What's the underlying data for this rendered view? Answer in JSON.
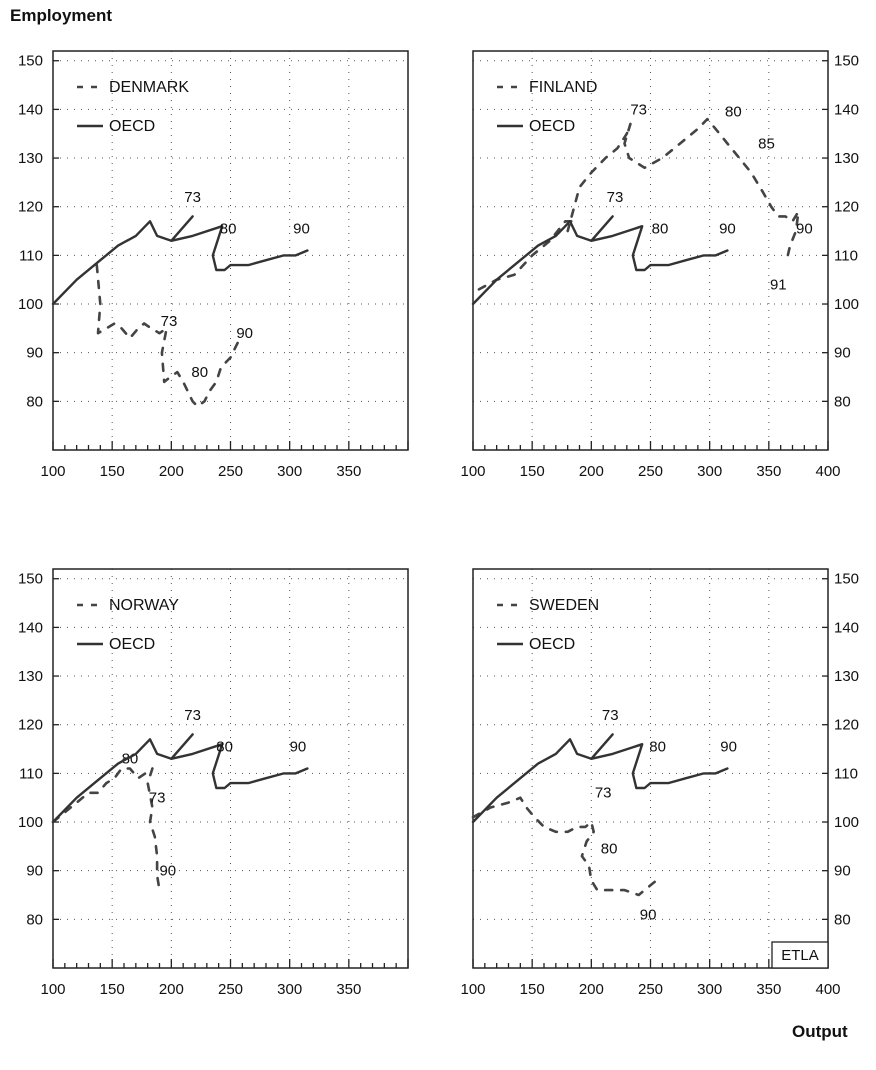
{
  "figure": {
    "y_axis_title": "Employment",
    "x_axis_title": "Output",
    "watermark": "ETLA"
  },
  "chart_data": [
    {
      "type": "line",
      "legend": [
        "DENMARK",
        "OECD"
      ],
      "xlim": [
        100,
        400
      ],
      "ylim": [
        70,
        152
      ],
      "x_ticks": [
        "100",
        "150",
        "200",
        "250",
        "300",
        "350"
      ],
      "y_ticks": [
        "150",
        "140",
        "130",
        "120",
        "110",
        "100",
        "90",
        "80"
      ],
      "series": [
        {
          "name": "DENMARK",
          "style": "dashed",
          "points": [
            [
              137,
              108
            ],
            [
              140,
              100
            ],
            [
              138,
              94
            ],
            [
              145,
              95
            ],
            [
              152,
              96
            ],
            [
              158,
              95
            ],
            [
              165,
              93
            ],
            [
              172,
              95
            ],
            [
              177,
              96
            ],
            [
              183,
              95
            ],
            [
              190,
              94
            ],
            [
              196,
              95
            ],
            [
              192,
              90
            ],
            [
              194,
              84
            ],
            [
              199,
              85
            ],
            [
              205,
              86
            ],
            [
              210,
              84
            ],
            [
              218,
              80
            ],
            [
              222,
              79
            ],
            [
              228,
              80
            ],
            [
              232,
              82
            ],
            [
              238,
              84
            ],
            [
              242,
              87
            ],
            [
              246,
              88
            ],
            [
              250,
              89
            ],
            [
              254,
              91
            ],
            [
              258,
              93
            ]
          ],
          "labels": [
            {
              "text": "73",
              "x": 198,
              "y": 95.5
            },
            {
              "text": "80",
              "x": 224,
              "y": 85
            },
            {
              "text": "90",
              "x": 262,
              "y": 93
            }
          ]
        },
        {
          "name": "OECD",
          "style": "solid",
          "points": [
            [
              100,
              100
            ],
            [
              120,
              105
            ],
            [
              140,
              109
            ],
            [
              155,
              112
            ],
            [
              170,
              114
            ],
            [
              182,
              117
            ],
            [
              188,
              114
            ],
            [
              200,
              113
            ],
            [
              218,
              118
            ],
            [
              200,
              113
            ],
            [
              218,
              114
            ],
            [
              243,
              116
            ],
            [
              235,
              110
            ],
            [
              238,
              107
            ],
            [
              245,
              107
            ],
            [
              250,
              108
            ],
            [
              265,
              108
            ],
            [
              280,
              109
            ],
            [
              295,
              110
            ],
            [
              305,
              110
            ],
            [
              315,
              111
            ]
          ],
          "labels": [
            {
              "text": "73",
              "x": 218,
              "y": 121
            },
            {
              "text": "80",
              "x": 248,
              "y": 114.5
            },
            {
              "text": "90",
              "x": 310,
              "y": 114.5
            }
          ]
        }
      ]
    },
    {
      "type": "line",
      "legend": [
        "FINLAND",
        "OECD"
      ],
      "xlim": [
        100,
        400
      ],
      "ylim": [
        70,
        152
      ],
      "x_ticks": [
        "100",
        "150",
        "200",
        "250",
        "300",
        "350",
        "400"
      ],
      "y_ticks": [
        "150",
        "140",
        "130",
        "120",
        "110",
        "100",
        "90",
        "80"
      ],
      "series": [
        {
          "name": "FINLAND",
          "style": "dashed",
          "points": [
            [
              105,
              103
            ],
            [
              120,
              105
            ],
            [
              135,
              106
            ],
            [
              150,
              110
            ],
            [
              165,
              113
            ],
            [
              178,
              117
            ],
            [
              183,
              117
            ],
            [
              180,
              115
            ],
            [
              190,
              124
            ],
            [
              200,
              127
            ],
            [
              212,
              130
            ],
            [
              222,
              132
            ],
            [
              230,
              135
            ],
            [
              233,
              137
            ],
            [
              228,
              133
            ],
            [
              232,
              130
            ],
            [
              245,
              128
            ],
            [
              260,
              130
            ],
            [
              275,
              133
            ],
            [
              290,
              136
            ],
            [
              298,
              138
            ],
            [
              305,
              136
            ],
            [
              315,
              133
            ],
            [
              325,
              130
            ],
            [
              335,
              127
            ],
            [
              345,
              123
            ],
            [
              352,
              120
            ],
            [
              358,
              118
            ],
            [
              364,
              118
            ],
            [
              370,
              117
            ],
            [
              375,
              119
            ],
            [
              373,
              115
            ],
            [
              368,
              112
            ],
            [
              366,
              110
            ]
          ],
          "labels": [
            {
              "text": "73",
              "x": 240,
              "y": 139
            },
            {
              "text": "80",
              "x": 320,
              "y": 138.5
            },
            {
              "text": "85",
              "x": 348,
              "y": 132
            },
            {
              "text": "73",
              "x": 220,
              "y": 121
            },
            {
              "text": "90",
              "x": 380,
              "y": 114.5
            },
            {
              "text": "91",
              "x": 358,
              "y": 103
            }
          ]
        },
        {
          "name": "OECD",
          "style": "solid",
          "points": [
            [
              100,
              100
            ],
            [
              120,
              105
            ],
            [
              140,
              109
            ],
            [
              155,
              112
            ],
            [
              170,
              114
            ],
            [
              182,
              117
            ],
            [
              188,
              114
            ],
            [
              200,
              113
            ],
            [
              218,
              118
            ],
            [
              200,
              113
            ],
            [
              218,
              114
            ],
            [
              243,
              116
            ],
            [
              235,
              110
            ],
            [
              238,
              107
            ],
            [
              245,
              107
            ],
            [
              250,
              108
            ],
            [
              265,
              108
            ],
            [
              280,
              109
            ],
            [
              295,
              110
            ],
            [
              305,
              110
            ],
            [
              315,
              111
            ]
          ],
          "labels": [
            {
              "text": "80",
              "x": 258,
              "y": 114.5
            },
            {
              "text": "90",
              "x": 315,
              "y": 114.5
            }
          ]
        }
      ]
    },
    {
      "type": "line",
      "legend": [
        "NORWAY",
        "OECD"
      ],
      "xlim": [
        100,
        400
      ],
      "ylim": [
        70,
        152
      ],
      "x_ticks": [
        "100",
        "150",
        "200",
        "250",
        "300",
        "350"
      ],
      "y_ticks": [
        "150",
        "140",
        "130",
        "120",
        "110",
        "100",
        "90",
        "80"
      ],
      "series": [
        {
          "name": "NORWAY",
          "style": "dashed",
          "points": [
            [
              100,
              100
            ],
            [
              110,
              102
            ],
            [
              120,
              104
            ],
            [
              130,
              106
            ],
            [
              138,
              106
            ],
            [
              145,
              108
            ],
            [
              152,
              109
            ],
            [
              158,
              111
            ],
            [
              165,
              111
            ],
            [
              172,
              109
            ],
            [
              178,
              110
            ],
            [
              184,
              111
            ],
            [
              180,
              108
            ],
            [
              184,
              103
            ],
            [
              182,
              100
            ],
            [
              186,
              97
            ],
            [
              188,
              93
            ],
            [
              188,
              89
            ],
            [
              190,
              86
            ]
          ],
          "labels": [
            {
              "text": "80",
              "x": 165,
              "y": 112
            },
            {
              "text": "73",
              "x": 188,
              "y": 104
            },
            {
              "text": "90",
              "x": 197,
              "y": 89
            }
          ]
        },
        {
          "name": "OECD",
          "style": "solid",
          "points": [
            [
              100,
              100
            ],
            [
              120,
              105
            ],
            [
              140,
              109
            ],
            [
              155,
              112
            ],
            [
              170,
              114
            ],
            [
              182,
              117
            ],
            [
              188,
              114
            ],
            [
              200,
              113
            ],
            [
              218,
              118
            ],
            [
              200,
              113
            ],
            [
              218,
              114
            ],
            [
              243,
              116
            ],
            [
              235,
              110
            ],
            [
              238,
              107
            ],
            [
              245,
              107
            ],
            [
              250,
              108
            ],
            [
              265,
              108
            ],
            [
              280,
              109
            ],
            [
              295,
              110
            ],
            [
              305,
              110
            ],
            [
              315,
              111
            ]
          ],
          "labels": [
            {
              "text": "73",
              "x": 218,
              "y": 121
            },
            {
              "text": "80",
              "x": 245,
              "y": 114.5
            },
            {
              "text": "90",
              "x": 307,
              "y": 114.5
            }
          ]
        }
      ]
    },
    {
      "type": "line",
      "legend": [
        "SWEDEN",
        "OECD"
      ],
      "xlim": [
        100,
        400
      ],
      "ylim": [
        70,
        152
      ],
      "x_ticks": [
        "100",
        "150",
        "200",
        "250",
        "300",
        "350",
        "400"
      ],
      "y_ticks": [
        "150",
        "140",
        "130",
        "120",
        "110",
        "100",
        "90",
        "80"
      ],
      "series": [
        {
          "name": "SWEDEN",
          "style": "dashed",
          "points": [
            [
              100,
              101
            ],
            [
              115,
              103
            ],
            [
              130,
              104
            ],
            [
              140,
              105
            ],
            [
              145,
              103
            ],
            [
              152,
              101
            ],
            [
              160,
              99
            ],
            [
              170,
              98
            ],
            [
              180,
              98
            ],
            [
              188,
              99
            ],
            [
              195,
              99
            ],
            [
              200,
              100
            ],
            [
              202,
              98
            ],
            [
              196,
              96
            ],
            [
              192,
              93
            ],
            [
              198,
              91
            ],
            [
              200,
              88
            ],
            [
              205,
              86
            ],
            [
              215,
              86
            ],
            [
              228,
              86
            ],
            [
              240,
              85
            ],
            [
              250,
              87
            ],
            [
              255,
              88
            ]
          ],
          "labels": [
            {
              "text": "73",
              "x": 210,
              "y": 105
            },
            {
              "text": "80",
              "x": 215,
              "y": 93.5
            },
            {
              "text": "90",
              "x": 248,
              "y": 80
            }
          ]
        },
        {
          "name": "OECD",
          "style": "solid",
          "points": [
            [
              100,
              100
            ],
            [
              120,
              105
            ],
            [
              140,
              109
            ],
            [
              155,
              112
            ],
            [
              170,
              114
            ],
            [
              182,
              117
            ],
            [
              188,
              114
            ],
            [
              200,
              113
            ],
            [
              218,
              118
            ],
            [
              200,
              113
            ],
            [
              218,
              114
            ],
            [
              243,
              116
            ],
            [
              235,
              110
            ],
            [
              238,
              107
            ],
            [
              245,
              107
            ],
            [
              250,
              108
            ],
            [
              265,
              108
            ],
            [
              280,
              109
            ],
            [
              295,
              110
            ],
            [
              305,
              110
            ],
            [
              315,
              111
            ]
          ],
          "labels": [
            {
              "text": "73",
              "x": 216,
              "y": 121
            },
            {
              "text": "80",
              "x": 256,
              "y": 114.5
            },
            {
              "text": "90",
              "x": 316,
              "y": 114.5
            }
          ]
        }
      ]
    }
  ]
}
